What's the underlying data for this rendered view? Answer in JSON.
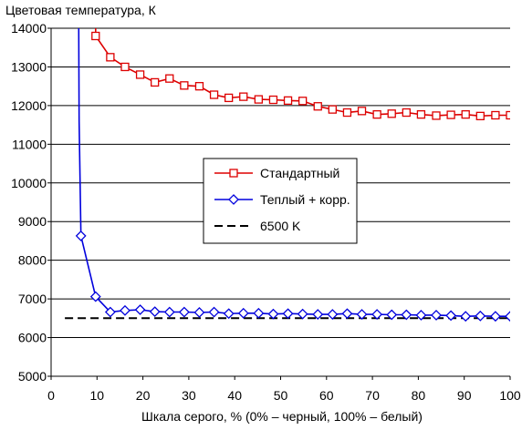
{
  "chart_data": {
    "type": "line",
    "title": "Цветовая температура, К",
    "xlabel": "Шкала серого, % (0% – черный, 100% – белый)",
    "ylabel": "",
    "xlim": [
      0,
      100
    ],
    "ylim": [
      5000,
      14000
    ],
    "xticks": [
      "0",
      "10",
      "20",
      "30",
      "40",
      "50",
      "60",
      "70",
      "80",
      "90",
      "100"
    ],
    "yticks": [
      "5000",
      "6000",
      "7000",
      "8000",
      "9000",
      "10000",
      "11000",
      "12000",
      "13000",
      "14000"
    ],
    "grid": "horizontal",
    "legend_position": "center-right",
    "series": [
      {
        "name": "Стандартный",
        "color": "#dd0000",
        "marker": "square",
        "line_style": "solid",
        "x": [
          9.7,
          12.9,
          16.1,
          19.4,
          22.6,
          25.8,
          29.0,
          32.3,
          35.5,
          38.7,
          41.9,
          45.2,
          48.4,
          51.6,
          54.8,
          58.1,
          61.3,
          64.5,
          67.7,
          71.0,
          74.2,
          77.4,
          80.6,
          83.9,
          87.1,
          90.3,
          93.5,
          96.8,
          100
        ],
        "y": [
          13800,
          13250,
          13000,
          12800,
          12600,
          12700,
          12520,
          12500,
          12280,
          12200,
          12230,
          12160,
          12150,
          12130,
          12120,
          11980,
          11900,
          11820,
          11860,
          11770,
          11790,
          11820,
          11770,
          11740,
          11760,
          11770,
          11730,
          11750,
          11750
        ]
      },
      {
        "name": "Теплый + корр.",
        "color": "#0000dd",
        "marker": "diamond",
        "line_style": "solid",
        "x": [
          6.5,
          9.7,
          12.9,
          16.1,
          19.4,
          22.6,
          25.8,
          29.0,
          32.3,
          35.5,
          38.7,
          41.9,
          45.2,
          48.4,
          51.6,
          54.8,
          58.1,
          61.3,
          64.5,
          67.7,
          71.0,
          74.2,
          77.4,
          80.6,
          83.9,
          87.1,
          90.3,
          93.5,
          96.8,
          100
        ],
        "y": [
          8630,
          7060,
          6660,
          6700,
          6720,
          6670,
          6660,
          6660,
          6650,
          6660,
          6620,
          6630,
          6630,
          6610,
          6620,
          6610,
          6600,
          6600,
          6620,
          6600,
          6600,
          6590,
          6590,
          6580,
          6580,
          6570,
          6550,
          6560,
          6550,
          6550
        ]
      },
      {
        "name": "6500 K",
        "color": "#000000",
        "marker": "none",
        "line_style": "dashed",
        "x": [
          3,
          100
        ],
        "y": [
          6500,
          6500
        ]
      }
    ]
  }
}
